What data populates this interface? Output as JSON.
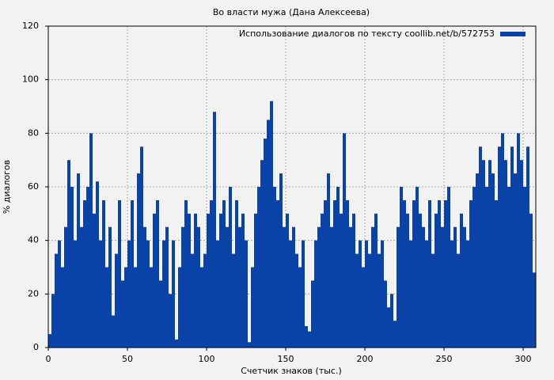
{
  "chart_data": {
    "type": "bar",
    "title": "Во власти мужа (Дана Алексеева)",
    "x_label": "Счетчик знаков (тыс.)",
    "y_label": "% диалогов",
    "legend_position": "upper right",
    "grid": true,
    "xlim": [
      0,
      308
    ],
    "xticks": [
      0,
      50,
      100,
      150,
      200,
      250,
      300
    ],
    "ylim": [
      0,
      120
    ],
    "yticks": [
      0,
      20,
      40,
      60,
      80,
      100,
      120
    ],
    "series": [
      {
        "name": "Использование диалогов по тексту coollib.net/b/572753",
        "color": "#0a43a8",
        "x": [
          0,
          2,
          4,
          6,
          8,
          10,
          12,
          14,
          16,
          18,
          20,
          22,
          24,
          26,
          28,
          30,
          32,
          34,
          36,
          38,
          40,
          42,
          44,
          46,
          48,
          50,
          52,
          54,
          56,
          58,
          60,
          62,
          64,
          66,
          68,
          70,
          72,
          74,
          76,
          78,
          80,
          82,
          84,
          86,
          88,
          90,
          92,
          94,
          96,
          98,
          100,
          102,
          104,
          106,
          108,
          110,
          112,
          114,
          116,
          118,
          120,
          122,
          124,
          126,
          128,
          130,
          132,
          134,
          136,
          138,
          140,
          142,
          144,
          146,
          148,
          150,
          152,
          154,
          156,
          158,
          160,
          162,
          164,
          166,
          168,
          170,
          172,
          174,
          176,
          178,
          180,
          182,
          184,
          186,
          188,
          190,
          192,
          194,
          196,
          198,
          200,
          202,
          204,
          206,
          208,
          210,
          212,
          214,
          216,
          218,
          220,
          222,
          224,
          226,
          228,
          230,
          232,
          234,
          236,
          238,
          240,
          242,
          244,
          246,
          248,
          250,
          252,
          254,
          256,
          258,
          260,
          262,
          264,
          266,
          268,
          270,
          272,
          274,
          276,
          278,
          280,
          282,
          284,
          286,
          288,
          290,
          292,
          294,
          296,
          298,
          300,
          302,
          304,
          306
        ],
        "values": [
          5,
          20,
          35,
          40,
          30,
          45,
          70,
          60,
          40,
          65,
          45,
          55,
          60,
          80,
          50,
          62,
          40,
          55,
          30,
          45,
          12,
          35,
          55,
          25,
          30,
          40,
          55,
          30,
          65,
          75,
          45,
          40,
          30,
          50,
          55,
          25,
          40,
          45,
          20,
          40,
          3,
          30,
          45,
          55,
          50,
          35,
          50,
          45,
          30,
          35,
          50,
          55,
          88,
          40,
          50,
          55,
          45,
          60,
          35,
          55,
          45,
          50,
          40,
          2,
          30,
          50,
          60,
          70,
          78,
          85,
          92,
          60,
          55,
          65,
          45,
          50,
          40,
          45,
          35,
          30,
          40,
          8,
          6,
          25,
          40,
          45,
          50,
          55,
          65,
          45,
          55,
          60,
          50,
          80,
          55,
          45,
          50,
          35,
          40,
          30,
          40,
          35,
          45,
          50,
          35,
          40,
          25,
          15,
          20,
          10,
          45,
          60,
          55,
          50,
          40,
          55,
          60,
          50,
          45,
          40,
          55,
          35,
          50,
          55,
          45,
          55,
          60,
          40,
          45,
          35,
          50,
          45,
          40,
          55,
          60,
          65,
          75,
          70,
          60,
          70,
          65,
          55,
          75,
          80,
          70,
          60,
          75,
          65,
          80,
          70,
          60,
          75,
          50,
          28
        ]
      }
    ]
  }
}
